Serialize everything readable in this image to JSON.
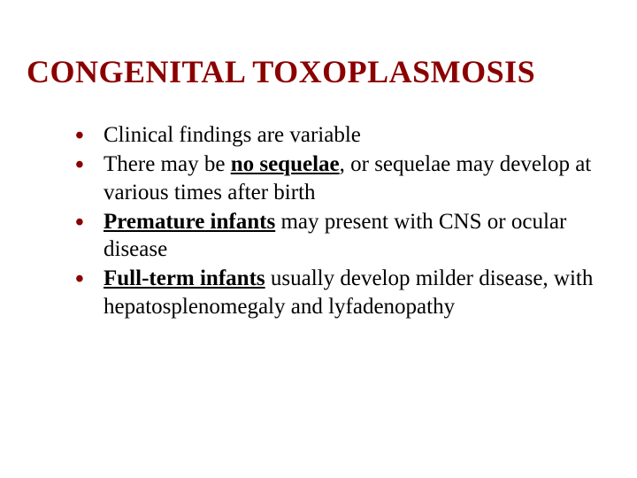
{
  "title": "CONGENITAL TOXOPLASMOSIS",
  "title_color": "#8b0000",
  "title_fontsize": 36,
  "bullet_color": "#8b0000",
  "text_color": "#000000",
  "text_fontsize": 25,
  "background_color": "#ffffff",
  "bullets": [
    {
      "segments": [
        {
          "text": "Clinical findings are variable",
          "style": "normal"
        }
      ]
    },
    {
      "segments": [
        {
          "text": "There may be ",
          "style": "normal"
        },
        {
          "text": "no sequelae",
          "style": "bold-underline"
        },
        {
          "text": ", or sequelae may develop at various times after birth",
          "style": "normal"
        }
      ]
    },
    {
      "segments": [
        {
          "text": "Premature infants",
          "style": "bold-underline"
        },
        {
          "text": " may present with CNS or ocular disease",
          "style": "normal"
        }
      ]
    },
    {
      "segments": [
        {
          "text": "Full-term infants",
          "style": "bold-underline"
        },
        {
          "text": " usually develop milder disease, with hepatosplenomegaly and lyfadenopathy",
          "style": "normal"
        }
      ]
    }
  ]
}
